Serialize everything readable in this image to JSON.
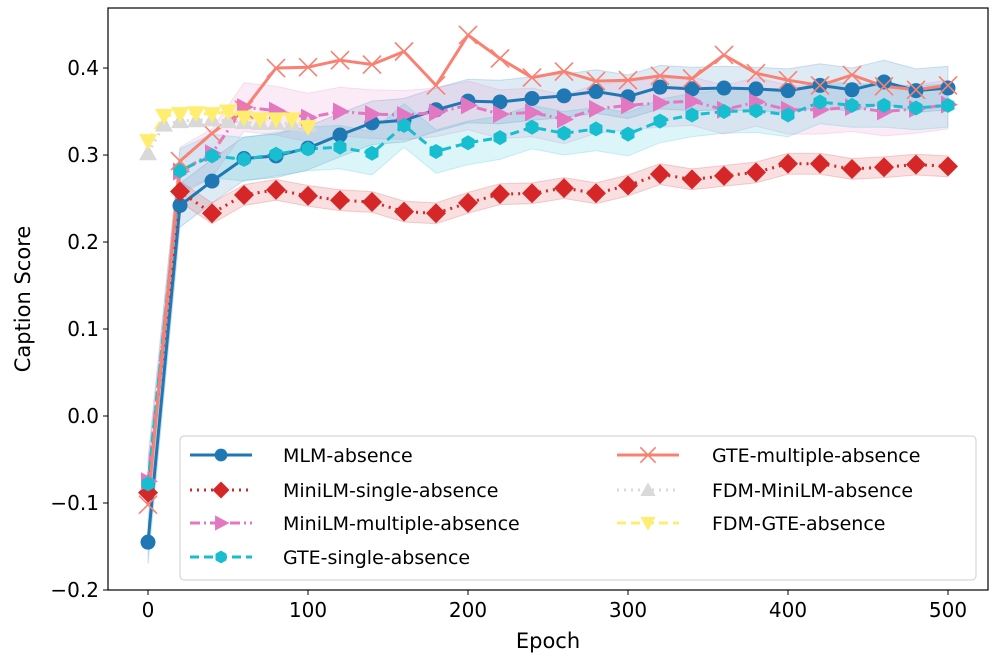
{
  "chart_data": {
    "type": "line",
    "title": "",
    "xlabel": "Epoch",
    "ylabel": "Caption Score",
    "xlim": [
      -25,
      525
    ],
    "ylim": [
      -0.2,
      0.469
    ],
    "xticks": [
      0,
      100,
      200,
      300,
      400,
      500
    ],
    "xtick_labels": [
      "0",
      "100",
      "200",
      "300",
      "400",
      "500"
    ],
    "yticks": [
      -0.2,
      -0.1,
      0.0,
      0.1,
      0.2,
      0.3,
      0.4
    ],
    "ytick_labels": [
      "−0.2",
      "−0.1",
      "0.0",
      "0.1",
      "0.2",
      "0.3",
      "0.4"
    ],
    "grid": false,
    "legend": {
      "placement": "lower-right",
      "columns": 2
    },
    "series": [
      {
        "name": "MLM-absence",
        "color": "#1f77b4",
        "linestyle": "solid",
        "marker": "circle",
        "band_halfwidth": 0.025,
        "x": [
          0,
          20,
          40,
          60,
          80,
          100,
          120,
          140,
          160,
          180,
          200,
          220,
          240,
          260,
          280,
          300,
          320,
          340,
          360,
          380,
          400,
          420,
          440,
          460,
          480,
          500
        ],
        "y": [
          -0.145,
          0.242,
          0.27,
          0.296,
          0.299,
          0.308,
          0.323,
          0.337,
          0.34,
          0.352,
          0.362,
          0.361,
          0.365,
          0.368,
          0.373,
          0.367,
          0.378,
          0.376,
          0.377,
          0.376,
          0.374,
          0.38,
          0.375,
          0.384,
          0.374,
          0.377
        ]
      },
      {
        "name": "MiniLM-single-absence",
        "color": "#d62728",
        "linestyle": "dotted",
        "marker": "diamond",
        "band_halfwidth": 0.012,
        "x": [
          0,
          20,
          40,
          60,
          80,
          100,
          120,
          140,
          160,
          180,
          200,
          220,
          240,
          260,
          280,
          300,
          320,
          340,
          360,
          380,
          400,
          420,
          440,
          460,
          480,
          500
        ],
        "y": [
          -0.088,
          0.258,
          0.233,
          0.254,
          0.26,
          0.253,
          0.248,
          0.246,
          0.235,
          0.233,
          0.245,
          0.255,
          0.256,
          0.262,
          0.256,
          0.265,
          0.278,
          0.272,
          0.276,
          0.28,
          0.29,
          0.29,
          0.284,
          0.286,
          0.289,
          0.287
        ]
      },
      {
        "name": "MiniLM-multiple-absence",
        "color": "#e377c2",
        "linestyle": "dashdot",
        "marker": "triangle-right",
        "band_halfwidth": 0.028,
        "x": [
          0,
          20,
          40,
          60,
          80,
          100,
          120,
          140,
          160,
          180,
          200,
          220,
          240,
          260,
          280,
          300,
          320,
          340,
          360,
          380,
          400,
          420,
          440,
          460,
          480,
          500
        ],
        "y": [
          -0.075,
          0.281,
          0.302,
          0.355,
          0.351,
          0.343,
          0.35,
          0.347,
          0.346,
          0.349,
          0.357,
          0.347,
          0.349,
          0.341,
          0.353,
          0.357,
          0.36,
          0.362,
          0.352,
          0.361,
          0.352,
          0.352,
          0.355,
          0.35,
          0.353,
          0.358
        ]
      },
      {
        "name": "GTE-single-absence",
        "color": "#17becf",
        "linestyle": "dashed",
        "marker": "hexagon",
        "band_halfwidth": 0.025,
        "x": [
          0,
          20,
          40,
          60,
          80,
          100,
          120,
          140,
          160,
          180,
          200,
          220,
          240,
          260,
          280,
          300,
          320,
          340,
          360,
          380,
          400,
          420,
          440,
          460,
          480,
          500
        ],
        "y": [
          -0.078,
          0.282,
          0.299,
          0.295,
          0.301,
          0.307,
          0.309,
          0.302,
          0.334,
          0.304,
          0.314,
          0.32,
          0.332,
          0.325,
          0.33,
          0.324,
          0.339,
          0.346,
          0.35,
          0.351,
          0.346,
          0.361,
          0.357,
          0.357,
          0.354,
          0.357
        ]
      },
      {
        "name": "GTE-multiple-absence",
        "color": "#fa8072",
        "linestyle": "solid",
        "marker": "x",
        "band_halfwidth": 0,
        "x": [
          0,
          20,
          40,
          60,
          80,
          100,
          120,
          140,
          160,
          180,
          200,
          220,
          240,
          260,
          280,
          300,
          320,
          340,
          360,
          380,
          400,
          420,
          440,
          460,
          480,
          500
        ],
        "y": [
          -0.102,
          0.293,
          0.325,
          0.352,
          0.4,
          0.401,
          0.409,
          0.404,
          0.419,
          0.38,
          0.438,
          0.411,
          0.389,
          0.396,
          0.385,
          0.386,
          0.391,
          0.388,
          0.415,
          0.394,
          0.386,
          0.38,
          0.392,
          0.379,
          0.375,
          0.38
        ]
      },
      {
        "name": "FDM-MiniLM-absence",
        "color": "#d9d9d9",
        "linestyle": "dotted",
        "marker": "triangle-up",
        "band_halfwidth": 0,
        "x": [
          0,
          10,
          20,
          30,
          40,
          50,
          60,
          70,
          80,
          90,
          100
        ],
        "y": [
          0.302,
          0.335,
          0.339,
          0.34,
          0.341,
          0.339,
          0.338,
          0.337,
          0.337,
          0.336,
          0.335
        ]
      },
      {
        "name": "FDM-GTE-absence",
        "color": "#ffed6f",
        "linestyle": "dashed",
        "marker": "triangle-down",
        "band_halfwidth": 0,
        "x": [
          0,
          10,
          20,
          30,
          40,
          50,
          60,
          70,
          80,
          90,
          100
        ],
        "y": [
          0.316,
          0.345,
          0.347,
          0.348,
          0.347,
          0.35,
          0.343,
          0.341,
          0.341,
          0.341,
          0.332
        ]
      }
    ]
  }
}
